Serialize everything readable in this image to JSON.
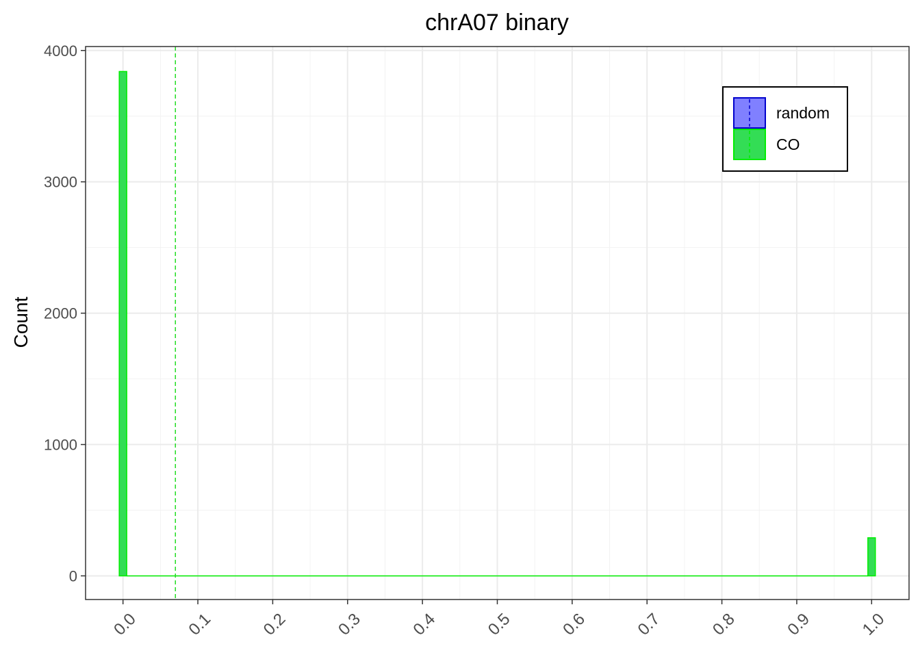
{
  "chart_data": {
    "type": "bar",
    "title": "chrA07 binary",
    "xlabel": "",
    "ylabel": "Count",
    "xlim": [
      -0.05,
      1.05
    ],
    "ylim": [
      -180,
      4030
    ],
    "x_ticks": [
      "0.0",
      "0.1",
      "0.2",
      "0.3",
      "0.4",
      "0.5",
      "0.6",
      "0.7",
      "0.8",
      "0.9",
      "1.0"
    ],
    "x_tick_values": [
      0,
      0.1,
      0.2,
      0.3,
      0.4,
      0.5,
      0.6,
      0.7,
      0.8,
      0.9,
      1.0
    ],
    "y_ticks": [
      "0",
      "1000",
      "2000",
      "3000",
      "4000"
    ],
    "y_tick_values": [
      0,
      1000,
      2000,
      3000,
      4000
    ],
    "bin_width": 0.01,
    "series": [
      {
        "name": "random",
        "fill": "#8080ff",
        "stroke": "#0000cc",
        "x": [
          0.0,
          1.0
        ],
        "values": [
          0,
          0
        ]
      },
      {
        "name": "CO",
        "fill": "#33dd55",
        "stroke": "#00ee00",
        "x": [
          0.0,
          1.0
        ],
        "values": [
          3840,
          290
        ]
      }
    ],
    "vlines": [
      {
        "series": "CO",
        "x": 0.07,
        "color": "#22dd22",
        "style": "dashed"
      }
    ],
    "grid": true,
    "legend": {
      "position": "top-right",
      "entries": [
        "random",
        "CO"
      ]
    }
  }
}
